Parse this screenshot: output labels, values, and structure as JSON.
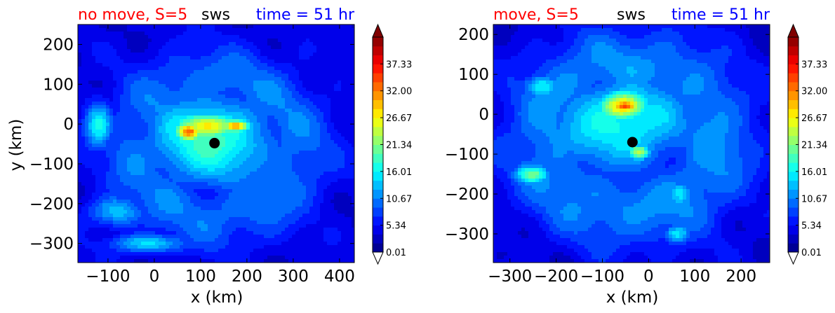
{
  "figure": {
    "panels": [
      {
        "title_left": "no move, S=5",
        "title_center": "sws",
        "title_right": "time = 51 hr",
        "xlabel": "x (km)",
        "ylabel": "y (km)",
        "xlim": [
          -165,
          432
        ],
        "ylim": [
          -348,
          250
        ],
        "xticks": [
          -100,
          0,
          100,
          200,
          300,
          400
        ],
        "yticks": [
          200,
          100,
          0,
          -100,
          -200,
          -300
        ],
        "xtick_labels": [
          "−100",
          "0",
          "100",
          "200",
          "300",
          "400"
        ],
        "ytick_labels": [
          "200",
          "100",
          "0",
          "−100",
          "−200",
          "−300"
        ],
        "center_marker": {
          "x": 130,
          "y": -48
        }
      },
      {
        "title_left": "move, S=5",
        "title_center": "sws",
        "title_right": "time = 51 hr",
        "xlabel": "x (km)",
        "ylabel": "",
        "xlim": [
          -336,
          262
        ],
        "ylim": [
          -372,
          225
        ],
        "xticks": [
          -300,
          -200,
          -100,
          0,
          100,
          200
        ],
        "yticks": [
          200,
          100,
          0,
          -100,
          -200,
          -300
        ],
        "xtick_labels": [
          "−300",
          "−200",
          "−100",
          "0",
          "100",
          "200"
        ],
        "ytick_labels": [
          "200",
          "100",
          "0",
          "−100",
          "−200",
          "−300"
        ],
        "center_marker": {
          "x": -35,
          "y": -70
        }
      }
    ],
    "colorbar": {
      "tick_labels": [
        "37.33",
        "32.00",
        "26.67",
        "21.34",
        "16.01",
        "10.67",
        "5.34",
        "0.01"
      ],
      "ticks": [
        37.33,
        32.0,
        26.67,
        21.34,
        16.01,
        10.67,
        5.34,
        0.01
      ],
      "vmin": 0.01,
      "vmax": 42.66,
      "extend": "both"
    },
    "colors": {
      "title_left": "#ff0000",
      "title_center": "#000000",
      "title_right": "#0000ff",
      "marker": "#000000"
    }
  },
  "chart_data": [
    {
      "type": "heatmap",
      "title": "no move, S=5  sws  time = 51 hr",
      "xlabel": "x (km)",
      "ylabel": "y (km)",
      "xlim": [
        -165,
        432
      ],
      "ylim": [
        -348,
        250
      ],
      "field": "sws",
      "background_value": 4,
      "features": [
        {
          "kind": "ring",
          "cx": 135,
          "cy": -60,
          "radius": 170,
          "width": 90,
          "value": 10
        },
        {
          "kind": "blob",
          "x": 120,
          "y": -40,
          "rx": 150,
          "ry": 120,
          "value": 18
        },
        {
          "kind": "blob",
          "x": 115,
          "y": -5,
          "rx": 70,
          "ry": 35,
          "value": 28
        },
        {
          "kind": "blob",
          "x": 75,
          "y": -20,
          "rx": 30,
          "ry": 25,
          "value": 33
        },
        {
          "kind": "blob",
          "x": 175,
          "y": -5,
          "rx": 35,
          "ry": 18,
          "value": 30
        },
        {
          "kind": "blob",
          "x": -120,
          "y": 0,
          "rx": 30,
          "ry": 60,
          "value": 16
        },
        {
          "kind": "blob",
          "x": -10,
          "y": -300,
          "rx": 80,
          "ry": 25,
          "value": 15
        },
        {
          "kind": "blob",
          "x": -80,
          "y": -220,
          "rx": 60,
          "ry": 40,
          "value": 14
        }
      ],
      "peak_value": 34,
      "center_marker": {
        "x": 130,
        "y": -48
      }
    },
    {
      "type": "heatmap",
      "title": "move, S=5  sws  time = 51 hr",
      "xlabel": "x (km)",
      "ylabel": "",
      "xlim": [
        -336,
        262
      ],
      "ylim": [
        -372,
        225
      ],
      "field": "sws",
      "background_value": 4,
      "features": [
        {
          "kind": "ring",
          "cx": -40,
          "cy": -60,
          "radius": 185,
          "width": 100,
          "value": 11
        },
        {
          "kind": "blob",
          "x": -60,
          "y": -20,
          "rx": 160,
          "ry": 120,
          "value": 17
        },
        {
          "kind": "blob",
          "x": -55,
          "y": 20,
          "rx": 55,
          "ry": 40,
          "value": 30
        },
        {
          "kind": "blob",
          "x": -50,
          "y": 20,
          "rx": 35,
          "ry": 20,
          "value": 36
        },
        {
          "kind": "blob",
          "x": -20,
          "y": -95,
          "rx": 25,
          "ry": 20,
          "value": 24
        },
        {
          "kind": "blob",
          "x": -250,
          "y": -150,
          "rx": 40,
          "ry": 25,
          "value": 20
        },
        {
          "kind": "blob",
          "x": 70,
          "y": -200,
          "rx": 30,
          "ry": 35,
          "value": 15
        },
        {
          "kind": "blob",
          "x": -230,
          "y": 70,
          "rx": 40,
          "ry": 30,
          "value": 16
        },
        {
          "kind": "blob",
          "x": 60,
          "y": -300,
          "rx": 30,
          "ry": 25,
          "value": 15
        }
      ],
      "peak_value": 38,
      "center_marker": {
        "x": -35,
        "y": -70
      }
    }
  ]
}
